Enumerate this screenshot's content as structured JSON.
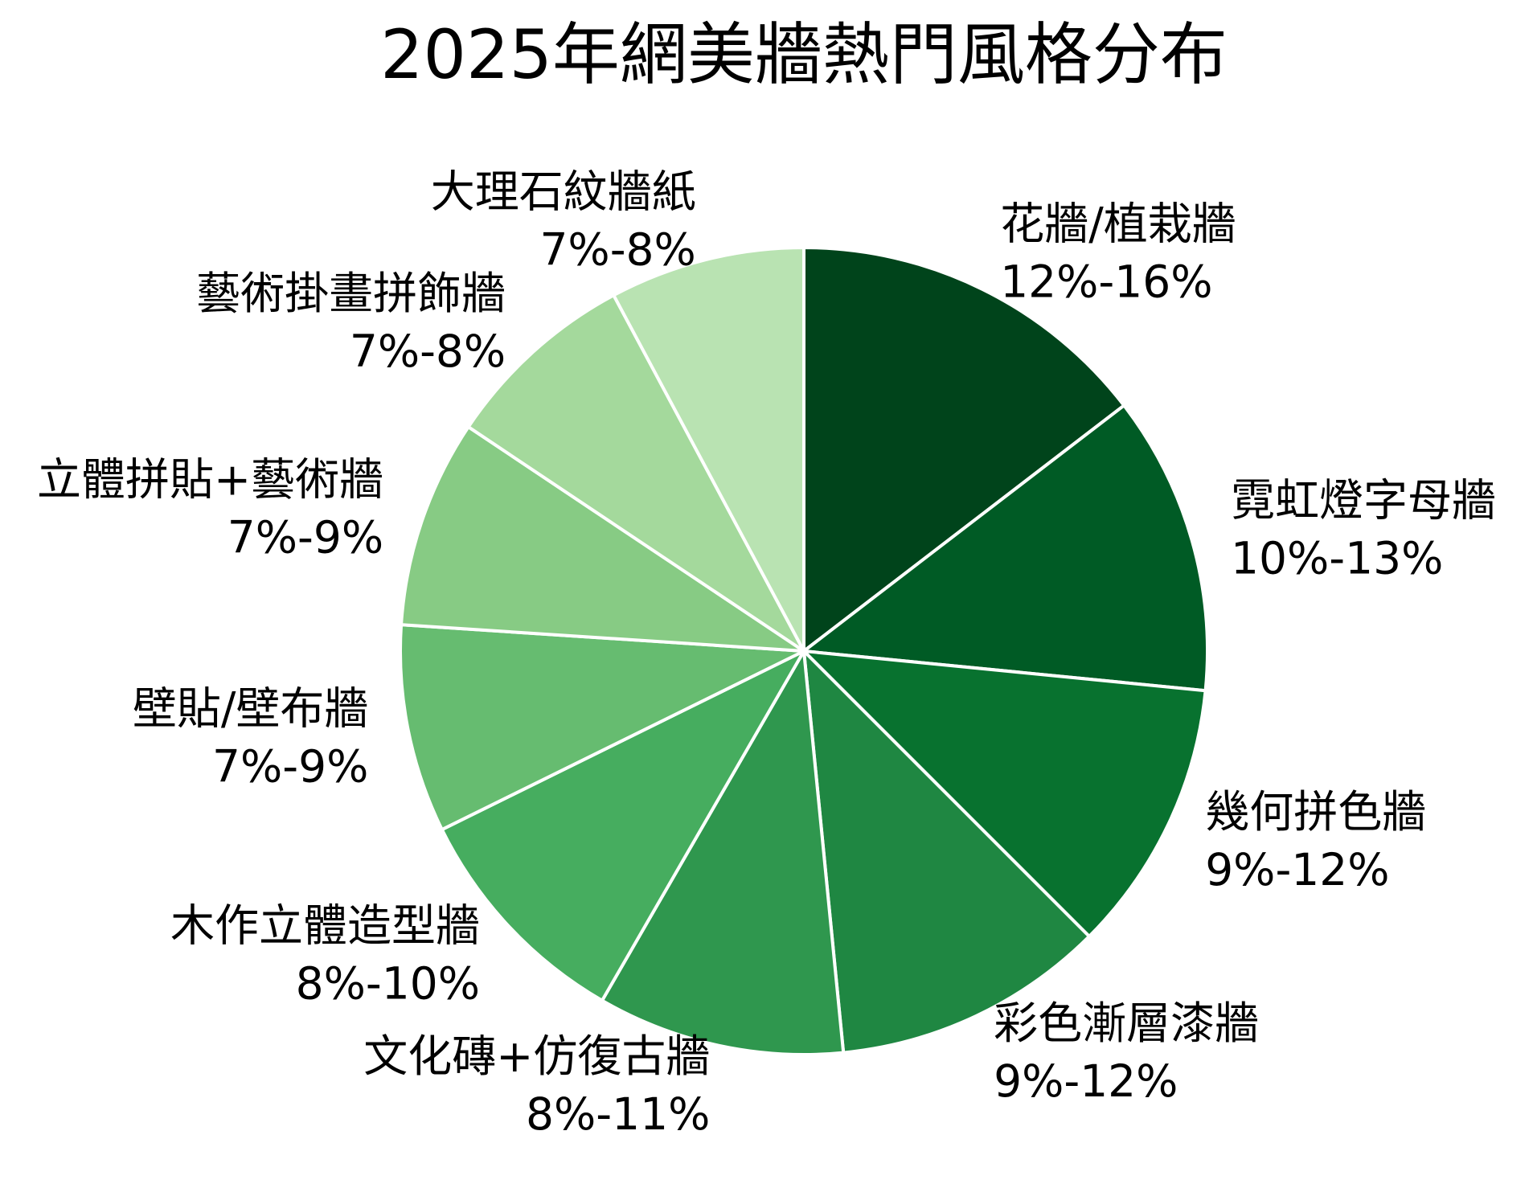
{
  "chart_data": {
    "type": "pie",
    "title": "2025年網美牆熱門風格分布",
    "edge_color": "#ffffff",
    "slices": [
      {
        "label": "花牆/植栽牆",
        "range": "12%-16%",
        "value": 14,
        "color": "#00441b"
      },
      {
        "label": "霓虹燈字母牆",
        "range": "10%-13%",
        "value": 11.5,
        "color": "#005b25"
      },
      {
        "label": "幾何拼色牆",
        "range": "9%-12%",
        "value": 10.5,
        "color": "#08722f"
      },
      {
        "label": "彩色漸層漆牆",
        "range": "9%-12%",
        "value": 10.5,
        "color": "#1f8742"
      },
      {
        "label": "文化磚+仿復古牆",
        "range": "8%-11%",
        "value": 9.5,
        "color": "#2f974e"
      },
      {
        "label": "木作立體造型牆",
        "range": "8%-10%",
        "value": 9,
        "color": "#46ad5f"
      },
      {
        "label": "壁貼/壁布牆",
        "range": "7%-9%",
        "value": 8,
        "color": "#66bc70"
      },
      {
        "label": "立體拼貼+藝術牆",
        "range": "7%-9%",
        "value": 8,
        "color": "#87cb84"
      },
      {
        "label": "藝術掛畫拼飾牆",
        "range": "7%-8%",
        "value": 7.5,
        "color": "#a4d99c"
      },
      {
        "label": "大理石紋牆紙",
        "range": "7%-8%",
        "value": 7.5,
        "color": "#b9e3b2"
      }
    ]
  }
}
